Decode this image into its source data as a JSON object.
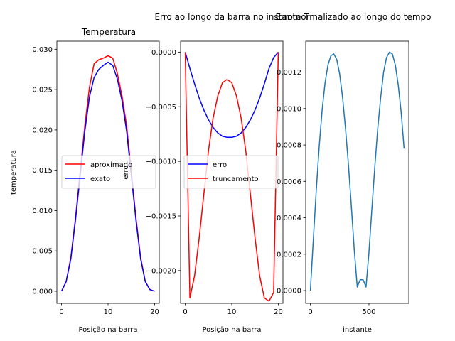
{
  "chart_data": [
    {
      "type": "line",
      "title": "Temperatura",
      "xlabel": "Posição na barra",
      "ylabel": "temperatura",
      "xlim": [
        -1,
        21
      ],
      "ylim": [
        -0.0015,
        0.031
      ],
      "xticks": [
        0,
        10,
        20
      ],
      "yticks": [
        0.0,
        0.005,
        0.01,
        0.015,
        0.02,
        0.025,
        0.03
      ],
      "ytick_labels": [
        "0.000",
        "0.005",
        "0.010",
        "0.015",
        "0.020",
        "0.025",
        "0.030"
      ],
      "legend": {
        "placement": "center-left"
      },
      "x": [
        0,
        1,
        2,
        3,
        4,
        5,
        6,
        7,
        8,
        9,
        10,
        11,
        12,
        13,
        14,
        15,
        16,
        17,
        18,
        19,
        20
      ],
      "series": [
        {
          "name": "aproximado",
          "color": "#ff0000",
          "values": [
            0.0,
            0.0012,
            0.0042,
            0.0091,
            0.0148,
            0.0205,
            0.0253,
            0.0282,
            0.0287,
            0.0289,
            0.0292,
            0.0289,
            0.027,
            0.0242,
            0.0205,
            0.0148,
            0.0091,
            0.0042,
            0.0012,
            0.0002,
            0.0
          ]
        },
        {
          "name": "exato",
          "color": "#0000ff",
          "values": [
            0.0,
            0.0012,
            0.004,
            0.0088,
            0.0143,
            0.0198,
            0.0241,
            0.0265,
            0.0275,
            0.028,
            0.0284,
            0.028,
            0.0263,
            0.0236,
            0.0198,
            0.0143,
            0.0088,
            0.004,
            0.0012,
            0.0002,
            0.0
          ]
        }
      ]
    },
    {
      "type": "line",
      "title": "Erro ao longo da barra no instante T",
      "xlabel": "Posição na barra",
      "ylabel": "erro",
      "xlim": [
        -1,
        21
      ],
      "ylim": [
        -0.0023,
        0.0001
      ],
      "xticks": [
        0,
        10,
        20
      ],
      "yticks": [
        0.0,
        -0.0005,
        -0.001,
        -0.0015,
        -0.002
      ],
      "ytick_labels": [
        "0.0000",
        "−0.0005",
        "−0.0010",
        "−0.0015",
        "−0.0020"
      ],
      "legend": {
        "placement": "center-left"
      },
      "x": [
        0,
        1,
        2,
        3,
        4,
        5,
        6,
        7,
        8,
        9,
        10,
        11,
        12,
        13,
        14,
        15,
        16,
        17,
        18,
        19,
        20
      ],
      "series": [
        {
          "name": "erro",
          "color": "#0000ff",
          "values": [
            0.0,
            -0.00015,
            -0.00029,
            -0.00042,
            -0.00053,
            -0.00062,
            -0.00069,
            -0.00074,
            -0.00077,
            -0.00078,
            -0.00078,
            -0.00077,
            -0.00074,
            -0.00069,
            -0.00062,
            -0.00053,
            -0.00042,
            -0.00029,
            -0.00015,
            -5e-05,
            0.0
          ]
        },
        {
          "name": "truncamento",
          "color": "#ff0000",
          "values": [
            0.0,
            -0.00225,
            -0.00205,
            -0.0017,
            -0.0013,
            -0.0009,
            -0.0006,
            -0.0004,
            -0.00028,
            -0.00025,
            -0.00028,
            -0.0004,
            -0.0006,
            -0.0009,
            -0.0013,
            -0.0017,
            -0.00205,
            -0.00225,
            -0.00228,
            -0.0022,
            0.0
          ]
        }
      ]
    },
    {
      "type": "line",
      "title": "Erro normalizado ao longo do tempo",
      "xlabel": "instante",
      "ylabel": "",
      "xlim": [
        -40,
        840
      ],
      "ylim": [
        -7e-05,
        0.00137
      ],
      "xticks": [
        0,
        500
      ],
      "yticks": [
        0.0,
        0.0002,
        0.0004,
        0.0006,
        0.0008,
        0.001,
        0.0012
      ],
      "ytick_labels": [
        "0.0000",
        "0.0002",
        "0.0004",
        "0.0006",
        "0.0008",
        "0.0010",
        "0.0012"
      ],
      "x": [
        0,
        25,
        50,
        75,
        100,
        125,
        150,
        175,
        200,
        225,
        250,
        275,
        300,
        325,
        350,
        375,
        400,
        425,
        450,
        475,
        500,
        525,
        550,
        575,
        600,
        625,
        650,
        675,
        700,
        725,
        750,
        775,
        800
      ],
      "series": [
        {
          "color": "#1f77b4",
          "values": [
            0.0,
            0.00028,
            0.00055,
            0.00079,
            0.00099,
            0.00114,
            0.00124,
            0.00129,
            0.0013,
            0.00127,
            0.00119,
            0.00106,
            0.00089,
            0.00069,
            0.00046,
            0.00022,
            2e-05,
            6e-05,
            6e-05,
            2e-05,
            0.00021,
            0.00045,
            0.00068,
            0.00089,
            0.00106,
            0.0012,
            0.00128,
            0.00131,
            0.0013,
            0.00124,
            0.00113,
            0.00098,
            0.00078
          ]
        }
      ]
    }
  ]
}
